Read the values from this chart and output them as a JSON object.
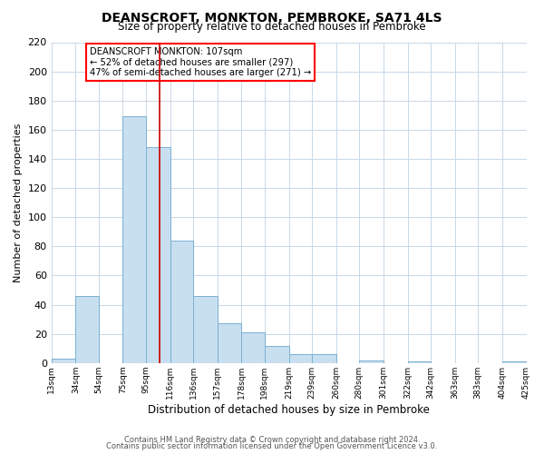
{
  "title": "DEANSCROFT, MONKTON, PEMBROKE, SA71 4LS",
  "subtitle": "Size of property relative to detached houses in Pembroke",
  "xlabel": "Distribution of detached houses by size in Pembroke",
  "ylabel": "Number of detached properties",
  "bar_color": "#c8dff0",
  "bar_edgecolor": "#7ab0d0",
  "vline_x": 107,
  "vline_color": "#cc0000",
  "bin_edges": [
    13,
    34,
    54,
    75,
    95,
    116,
    136,
    157,
    178,
    198,
    219,
    239,
    260,
    280,
    301,
    322,
    342,
    363,
    383,
    404,
    425
  ],
  "bar_heights": [
    3,
    46,
    0,
    169,
    148,
    84,
    46,
    27,
    21,
    12,
    6,
    6,
    0,
    2,
    0,
    1,
    0,
    0,
    0,
    1
  ],
  "tick_labels": [
    "13sqm",
    "34sqm",
    "54sqm",
    "75sqm",
    "95sqm",
    "116sqm",
    "136sqm",
    "157sqm",
    "178sqm",
    "198sqm",
    "219sqm",
    "239sqm",
    "260sqm",
    "280sqm",
    "301sqm",
    "322sqm",
    "342sqm",
    "363sqm",
    "383sqm",
    "404sqm",
    "425sqm"
  ],
  "ylim": [
    0,
    220
  ],
  "yticks": [
    0,
    20,
    40,
    60,
    80,
    100,
    120,
    140,
    160,
    180,
    200,
    220
  ],
  "annotation_title": "DEANSCROFT MONKTON: 107sqm",
  "annotation_line1": "← 52% of detached houses are smaller (297)",
  "annotation_line2": "47% of semi-detached houses are larger (271) →",
  "footer1": "Contains HM Land Registry data © Crown copyright and database right 2024.",
  "footer2": "Contains public sector information licensed under the Open Government Licence v3.0.",
  "background_color": "#ffffff",
  "grid_color": "#c8d8e8"
}
